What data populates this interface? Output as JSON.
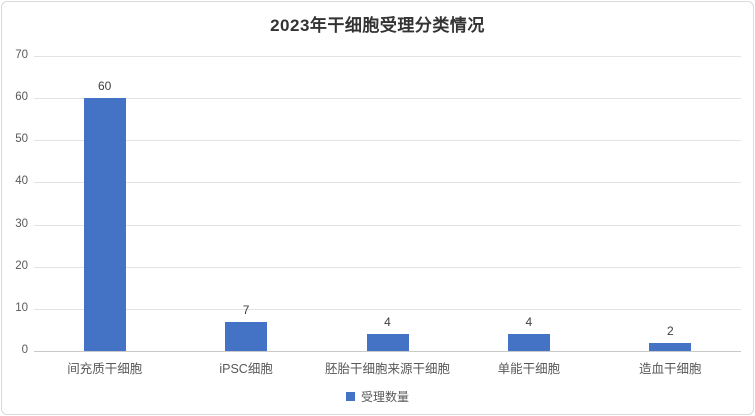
{
  "chart_data": {
    "type": "bar",
    "title": "2023年干细胞受理分类情况",
    "categories": [
      "间充质干细胞",
      "iPSC细胞",
      "胚胎干细胞来源干细胞",
      "单能干细胞",
      "造血干细胞"
    ],
    "series": [
      {
        "name": "受理数量",
        "color": "#4472c4",
        "values": [
          60,
          7,
          4,
          4,
          2
        ]
      }
    ],
    "xlabel": "",
    "ylabel": "",
    "ylim": [
      0,
      70
    ],
    "y_ticks": [
      0,
      10,
      20,
      30,
      40,
      50,
      60,
      70
    ],
    "grid": "horizontal",
    "legend_position": "bottom",
    "data_labels": [
      60,
      7,
      4,
      4,
      2
    ]
  },
  "legend": {
    "marker": "square-icon",
    "label": "受理数量"
  },
  "colors": {
    "bar": "#4472c4",
    "gridline": "#e3e3e3",
    "axis_baseline": "#c9c9c9",
    "card_border": "#d9d9d9",
    "title_text": "#333333",
    "axis_text": "#595959",
    "value_text": "#404040",
    "background": "#ffffff"
  }
}
